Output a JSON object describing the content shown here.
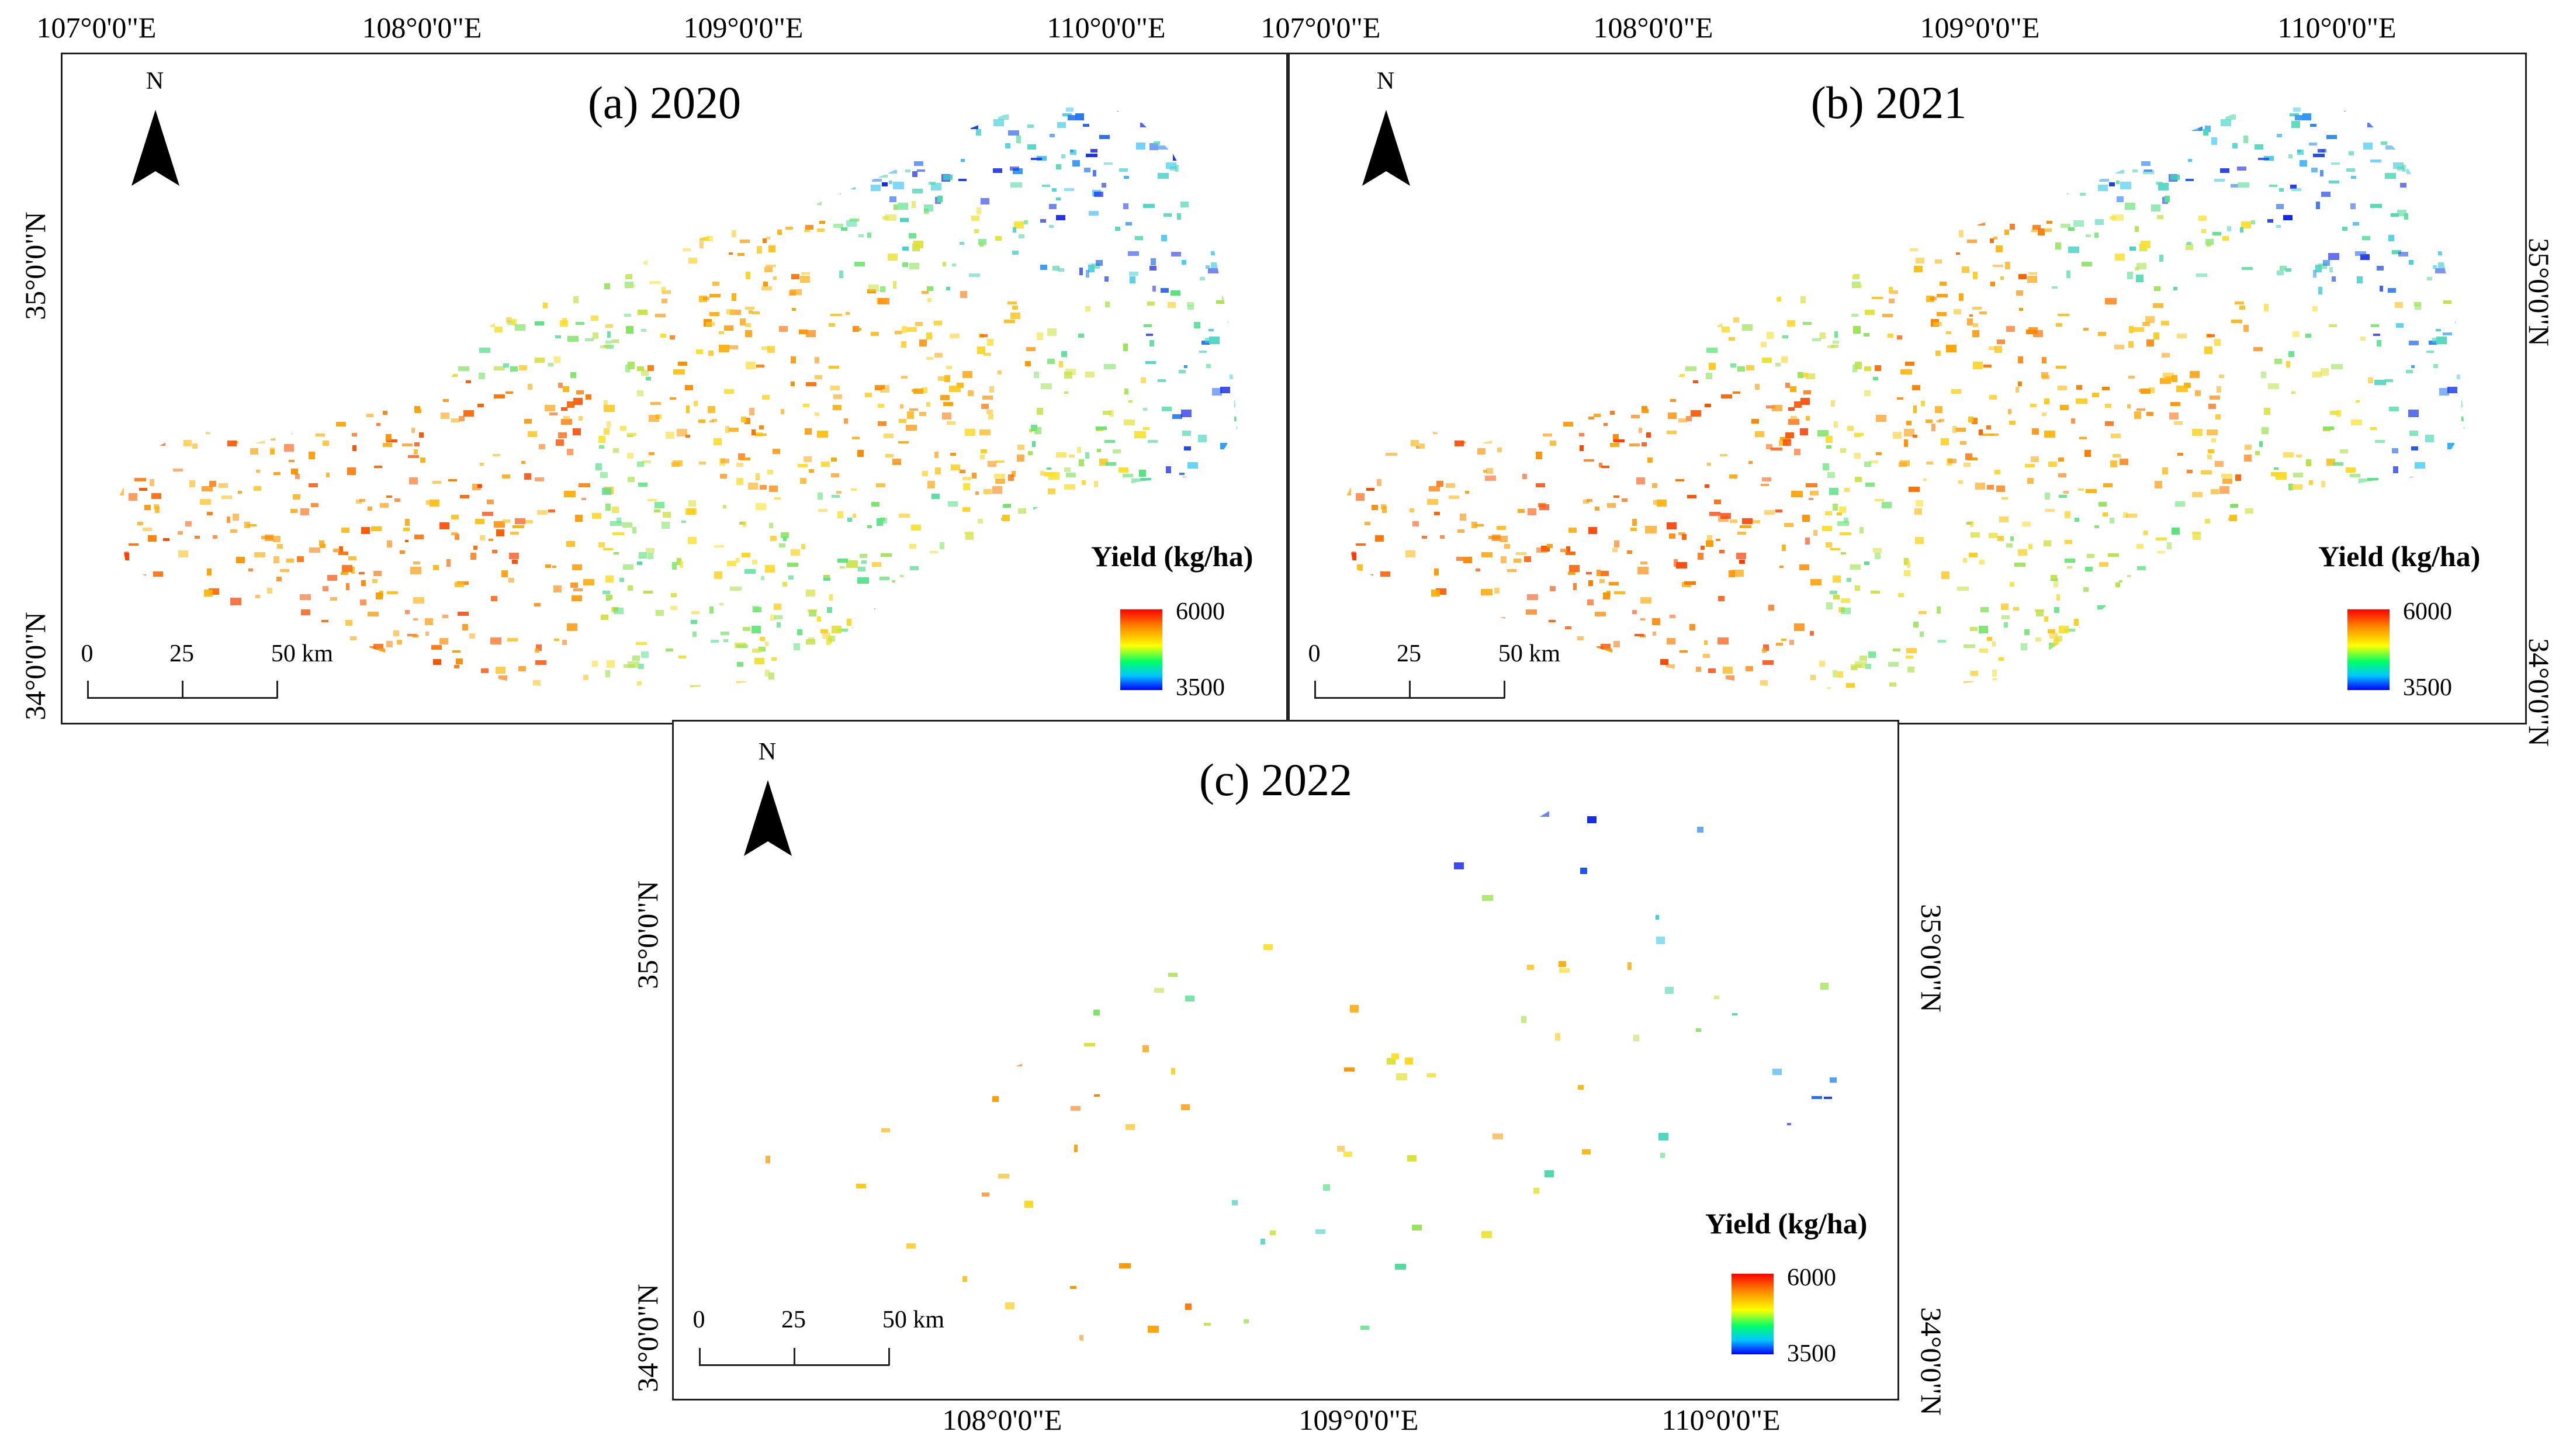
{
  "top_coords": [
    "107°0'0\"E",
    "108°0'0\"E",
    "109°0'0\"E",
    "110°0'0\"E"
  ],
  "top_coords_b": [
    "107°0'0\"E",
    "108°0'0\"E",
    "109°0'0\"E",
    "110°0'0\"E"
  ],
  "left_coords_a": [
    "35°0'0\"N",
    "34°0'0\"N"
  ],
  "right_coords_b": [
    "35°0'0\"N",
    "34°0'0\"N"
  ],
  "left_coords_c": [
    "35°0'0\"N",
    "34°0'0\"N"
  ],
  "right_coords_c": [
    "35°0'0\"N",
    "34°0'0\"N"
  ],
  "bottom_coords_c": [
    "108°0'0\"E",
    "109°0'0\"E",
    "110°0'0\"E"
  ],
  "panels": [
    {
      "title": "(a) 2020",
      "north": "N",
      "legend_title": "Yield (kg/ha)",
      "legend_max": "6000",
      "legend_min": "3500",
      "scale": [
        "0",
        "25",
        "50 km"
      ]
    },
    {
      "title": "(b) 2021",
      "north": "N",
      "legend_title": "Yield (kg/ha)",
      "legend_max": "6000",
      "legend_min": "3500",
      "scale": [
        "0",
        "25",
        "50 km"
      ]
    },
    {
      "title": "(c) 2022",
      "north": "N",
      "legend_title": "Yield (kg/ha)",
      "legend_max": "6000",
      "legend_min": "3500",
      "scale": [
        "0",
        "25",
        "50 km"
      ]
    }
  ],
  "legend_colors": [
    "#ff0000",
    "#ff8a00",
    "#ffff00",
    "#00ff66",
    "#00c8ff",
    "#0000ff"
  ]
}
